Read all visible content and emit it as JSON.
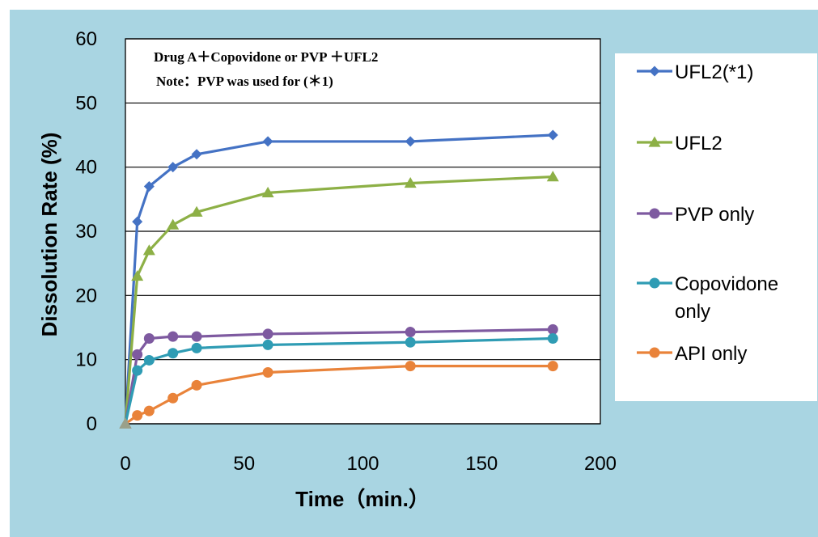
{
  "chart_data": {
    "type": "line",
    "xlabel": "Time（min.）",
    "ylabel": "Dissolution Rate (%)",
    "xlim": [
      0,
      200
    ],
    "ylim": [
      0,
      60
    ],
    "xticks": [
      "0",
      "50",
      "100",
      "150",
      "200"
    ],
    "yticks": [
      "0",
      "10",
      "20",
      "30",
      "40",
      "50",
      "60"
    ],
    "grid": "horizontal",
    "legend_position": "right",
    "annotations": [
      "Drug A＋Copovidone  or  PVP  ＋UFL2",
      "Note：PVP  was used for (＊1)"
    ],
    "x": [
      0,
      5,
      10,
      20,
      30,
      60,
      120,
      180
    ],
    "series": [
      {
        "name": "UFL2(*1)",
        "color": "#4472c4",
        "marker": "diamond",
        "values": [
          0,
          31.5,
          37,
          40,
          42,
          44,
          44,
          45
        ]
      },
      {
        "name": "UFL2",
        "color": "#8db046",
        "marker": "triangle",
        "values": [
          0,
          23,
          27,
          31,
          33,
          36,
          37.5,
          38.5
        ]
      },
      {
        "name": "PVP only",
        "color": "#7e5aa0",
        "marker": "circle",
        "values": [
          0,
          10.8,
          13.3,
          13.6,
          13.6,
          14,
          14.3,
          14.7
        ]
      },
      {
        "name": "Copovidone\nonly",
        "color": "#2f9cb4",
        "marker": "circle",
        "values": [
          0,
          8.3,
          9.9,
          11,
          11.8,
          12.3,
          12.7,
          13.3
        ]
      },
      {
        "name": "API only",
        "color": "#e9833a",
        "marker": "circle",
        "values": [
          0,
          1.3,
          2,
          4,
          6,
          8,
          9,
          9
        ]
      }
    ]
  }
}
